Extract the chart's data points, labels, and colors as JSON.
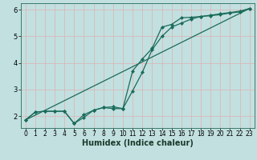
{
  "xlabel": "Humidex (Indice chaleur)",
  "bg_color": "#c2e0e0",
  "grid_color": "#dbb8b8",
  "line_color": "#1a6b5a",
  "xlim": [
    -0.5,
    23.5
  ],
  "ylim": [
    1.55,
    6.25
  ],
  "xticks": [
    0,
    1,
    2,
    3,
    4,
    5,
    6,
    7,
    8,
    9,
    10,
    11,
    12,
    13,
    14,
    15,
    16,
    17,
    18,
    19,
    20,
    21,
    22,
    23
  ],
  "yticks": [
    2,
    3,
    4,
    5,
    6
  ],
  "line1_x": [
    0,
    1,
    2,
    3,
    4,
    5,
    6,
    7,
    8,
    9,
    10,
    11,
    12,
    13,
    14,
    15,
    16,
    17,
    18,
    19,
    20,
    21,
    22,
    23
  ],
  "line1_y": [
    1.85,
    2.15,
    2.18,
    2.18,
    2.18,
    1.72,
    1.95,
    2.22,
    2.32,
    2.35,
    2.28,
    2.95,
    3.65,
    4.5,
    5.0,
    5.35,
    5.5,
    5.65,
    5.75,
    5.8,
    5.85,
    5.9,
    5.95,
    6.05
  ],
  "line2_x": [
    0,
    1,
    2,
    3,
    4,
    5,
    6,
    7,
    8,
    9,
    10,
    11,
    12,
    13,
    14,
    15,
    16,
    17,
    18,
    19,
    20,
    21,
    22,
    23
  ],
  "line2_y": [
    1.85,
    2.15,
    2.18,
    2.18,
    2.18,
    1.72,
    2.05,
    2.22,
    2.32,
    2.28,
    2.28,
    3.7,
    4.15,
    4.55,
    5.35,
    5.45,
    5.7,
    5.72,
    5.75,
    5.78,
    5.82,
    5.88,
    5.92,
    6.05
  ],
  "line3_x": [
    0,
    23
  ],
  "line3_y": [
    1.85,
    6.05
  ],
  "marker_size": 2.2,
  "linewidth": 0.9,
  "font_size_tick": 5.5,
  "font_size_label": 7
}
